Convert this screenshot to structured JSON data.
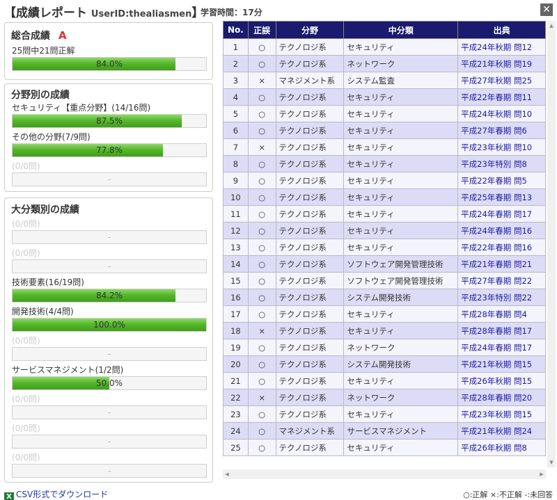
{
  "header": {
    "title": "【成績レポート",
    "user_id": "UserID:thealiasmen",
    "title_close": "】",
    "study_time": "学習時間：17分",
    "close_glyph": "✕"
  },
  "overall": {
    "title": "総合成績",
    "grade": "A",
    "summary": "25問中21問正解",
    "percent": "84.0%",
    "ratio": 0.84
  },
  "field": {
    "title": "分野別の成績",
    "items": [
      {
        "label": "セキュリティ【重点分野】(14/16問)",
        "percent": "87.5%",
        "ratio": 0.875
      },
      {
        "label": "その他の分野(7/9問)",
        "percent": "77.8%",
        "ratio": 0.778
      },
      {
        "label": "(0/0問)",
        "percent": "-",
        "ratio": 0
      }
    ]
  },
  "category": {
    "title": "大分類別の成績",
    "items": [
      {
        "label": "(0/0問)",
        "percent": "-",
        "ratio": 0
      },
      {
        "label": "(0/0問)",
        "percent": "-",
        "ratio": 0
      },
      {
        "label": "技術要素(16/19問)",
        "percent": "84.2%",
        "ratio": 0.842
      },
      {
        "label": "開発技術(4/4問)",
        "percent": "100.0%",
        "ratio": 1.0
      },
      {
        "label": "(0/0問)",
        "percent": "-",
        "ratio": 0
      },
      {
        "label": "サービスマネジメント(1/2問)",
        "percent": "50.0%",
        "ratio": 0.5
      },
      {
        "label": "(0/0問)",
        "percent": "-",
        "ratio": 0
      },
      {
        "label": "(0/0問)",
        "percent": "-",
        "ratio": 0
      },
      {
        "label": "(0/0問)",
        "percent": "-",
        "ratio": 0
      }
    ]
  },
  "table": {
    "headers": [
      "No.",
      "正誤",
      "分野",
      "中分類",
      "出典"
    ],
    "rows": [
      [
        "1",
        "○",
        "テクノロジ系",
        "セキュリティ",
        "平成24年秋期 問12"
      ],
      [
        "2",
        "○",
        "テクノロジ系",
        "ネットワーク",
        "平成21年秋期 問19"
      ],
      [
        "3",
        "×",
        "マネジメント系",
        "システム監査",
        "平成27年秋期 問25"
      ],
      [
        "4",
        "○",
        "テクノロジ系",
        "セキュリティ",
        "平成22年春期 問11"
      ],
      [
        "5",
        "○",
        "テクノロジ系",
        "セキュリティ",
        "平成24年秋期 問10"
      ],
      [
        "6",
        "○",
        "テクノロジ系",
        "セキュリティ",
        "平成27年春期 問6"
      ],
      [
        "7",
        "×",
        "テクノロジ系",
        "セキュリティ",
        "平成23年秋期 問10"
      ],
      [
        "8",
        "○",
        "テクノロジ系",
        "セキュリティ",
        "平成23年特別 問8"
      ],
      [
        "9",
        "○",
        "テクノロジ系",
        "セキュリティ",
        "平成22年春期 問5"
      ],
      [
        "10",
        "○",
        "テクノロジ系",
        "セキュリティ",
        "平成25年春期 問13"
      ],
      [
        "11",
        "○",
        "テクノロジ系",
        "セキュリティ",
        "平成24年春期 問17"
      ],
      [
        "12",
        "○",
        "テクノロジ系",
        "セキュリティ",
        "平成24年春期 問16"
      ],
      [
        "13",
        "○",
        "テクノロジ系",
        "セキュリティ",
        "平成22年春期 問16"
      ],
      [
        "14",
        "○",
        "テクノロジ系",
        "ソフトウェア開発管理技術",
        "平成21年春期 問21"
      ],
      [
        "15",
        "○",
        "テクノロジ系",
        "ソフトウェア開発管理技術",
        "平成27年春期 問22"
      ],
      [
        "16",
        "○",
        "テクノロジ系",
        "システム開発技術",
        "平成23年特別 問22"
      ],
      [
        "17",
        "○",
        "テクノロジ系",
        "セキュリティ",
        "平成28年春期 問4"
      ],
      [
        "18",
        "×",
        "テクノロジ系",
        "セキュリティ",
        "平成28年春期 問17"
      ],
      [
        "19",
        "○",
        "テクノロジ系",
        "ネットワーク",
        "平成24年春期 問17"
      ],
      [
        "20",
        "○",
        "テクノロジ系",
        "システム開発技術",
        "平成21年秋期 問15"
      ],
      [
        "21",
        "○",
        "テクノロジ系",
        "セキュリティ",
        "平成26年秋期 問15"
      ],
      [
        "22",
        "×",
        "テクノロジ系",
        "ネットワーク",
        "平成28年春期 問20"
      ],
      [
        "23",
        "○",
        "テクノロジ系",
        "セキュリティ",
        "平成23年秋期 問15"
      ],
      [
        "24",
        "○",
        "マネジメント系",
        "サービスマネジメント",
        "平成21年秋期 問24"
      ],
      [
        "25",
        "○",
        "テクノロジ系",
        "セキュリティ",
        "平成26年秋期 問8"
      ]
    ]
  },
  "footer": {
    "csv_icon": "excel-icon",
    "csv_label": "CSV形式でダウンロード",
    "legend": "○:正解 ×:不正解 -:未回答"
  }
}
